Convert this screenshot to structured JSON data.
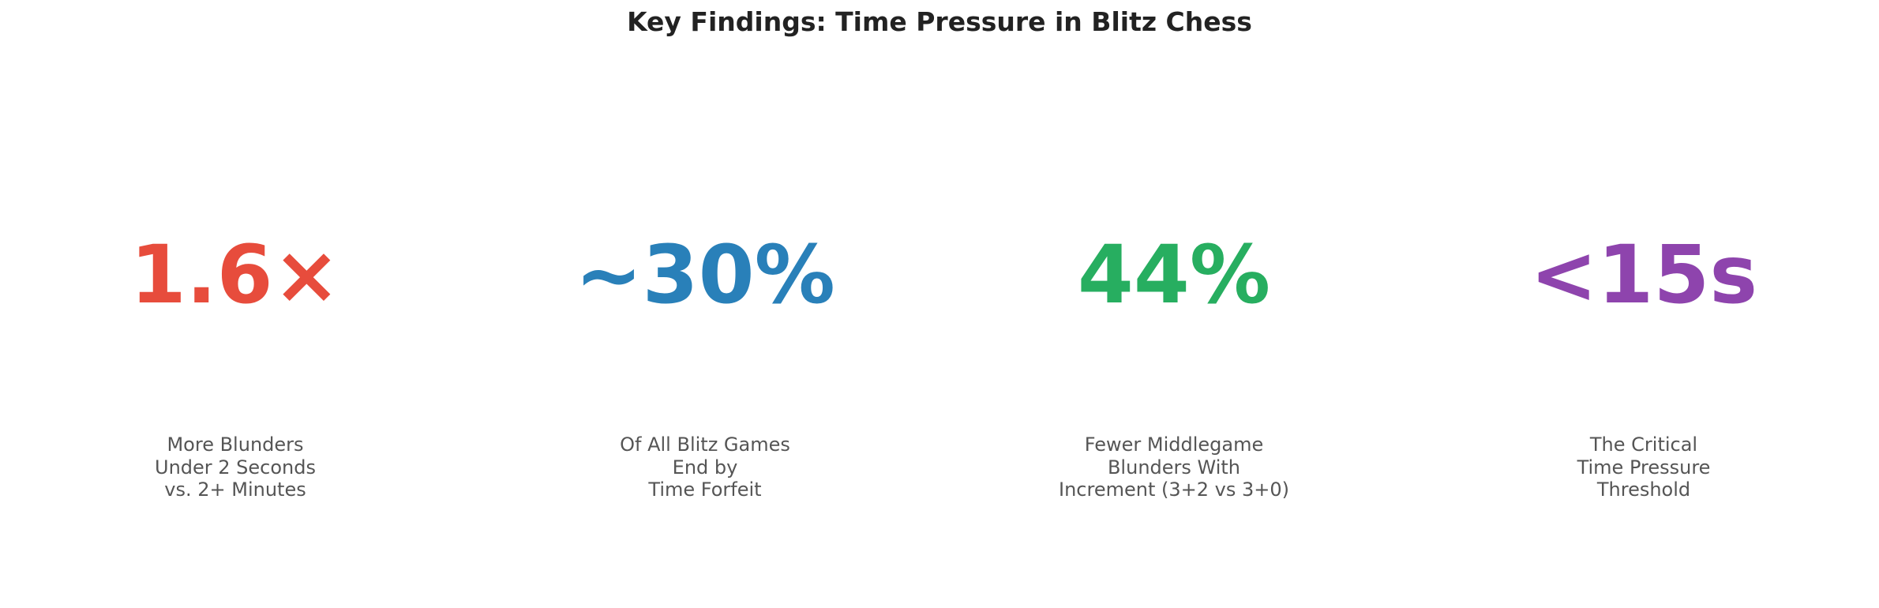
{
  "chart_data": {
    "type": "table",
    "title": "Key Findings: Time Pressure in Blitz Chess",
    "findings": [
      {
        "value": "1.6×",
        "color": "#e74c3c",
        "description": [
          "More Blunders",
          "Under 2 Seconds",
          "vs. 2+ Minutes"
        ]
      },
      {
        "value": "~30%",
        "color": "#2980b9",
        "description": [
          "Of All Blitz Games",
          "End by",
          "Time Forfeit"
        ]
      },
      {
        "value": "44%",
        "color": "#27ae60",
        "description": [
          "Fewer Middlegame",
          "Blunders With",
          "Increment (3+2 vs 3+0)"
        ]
      },
      {
        "value": "<15s",
        "color": "#8e44ad",
        "description": [
          "The Critical",
          "Time Pressure",
          "Threshold"
        ]
      }
    ]
  }
}
